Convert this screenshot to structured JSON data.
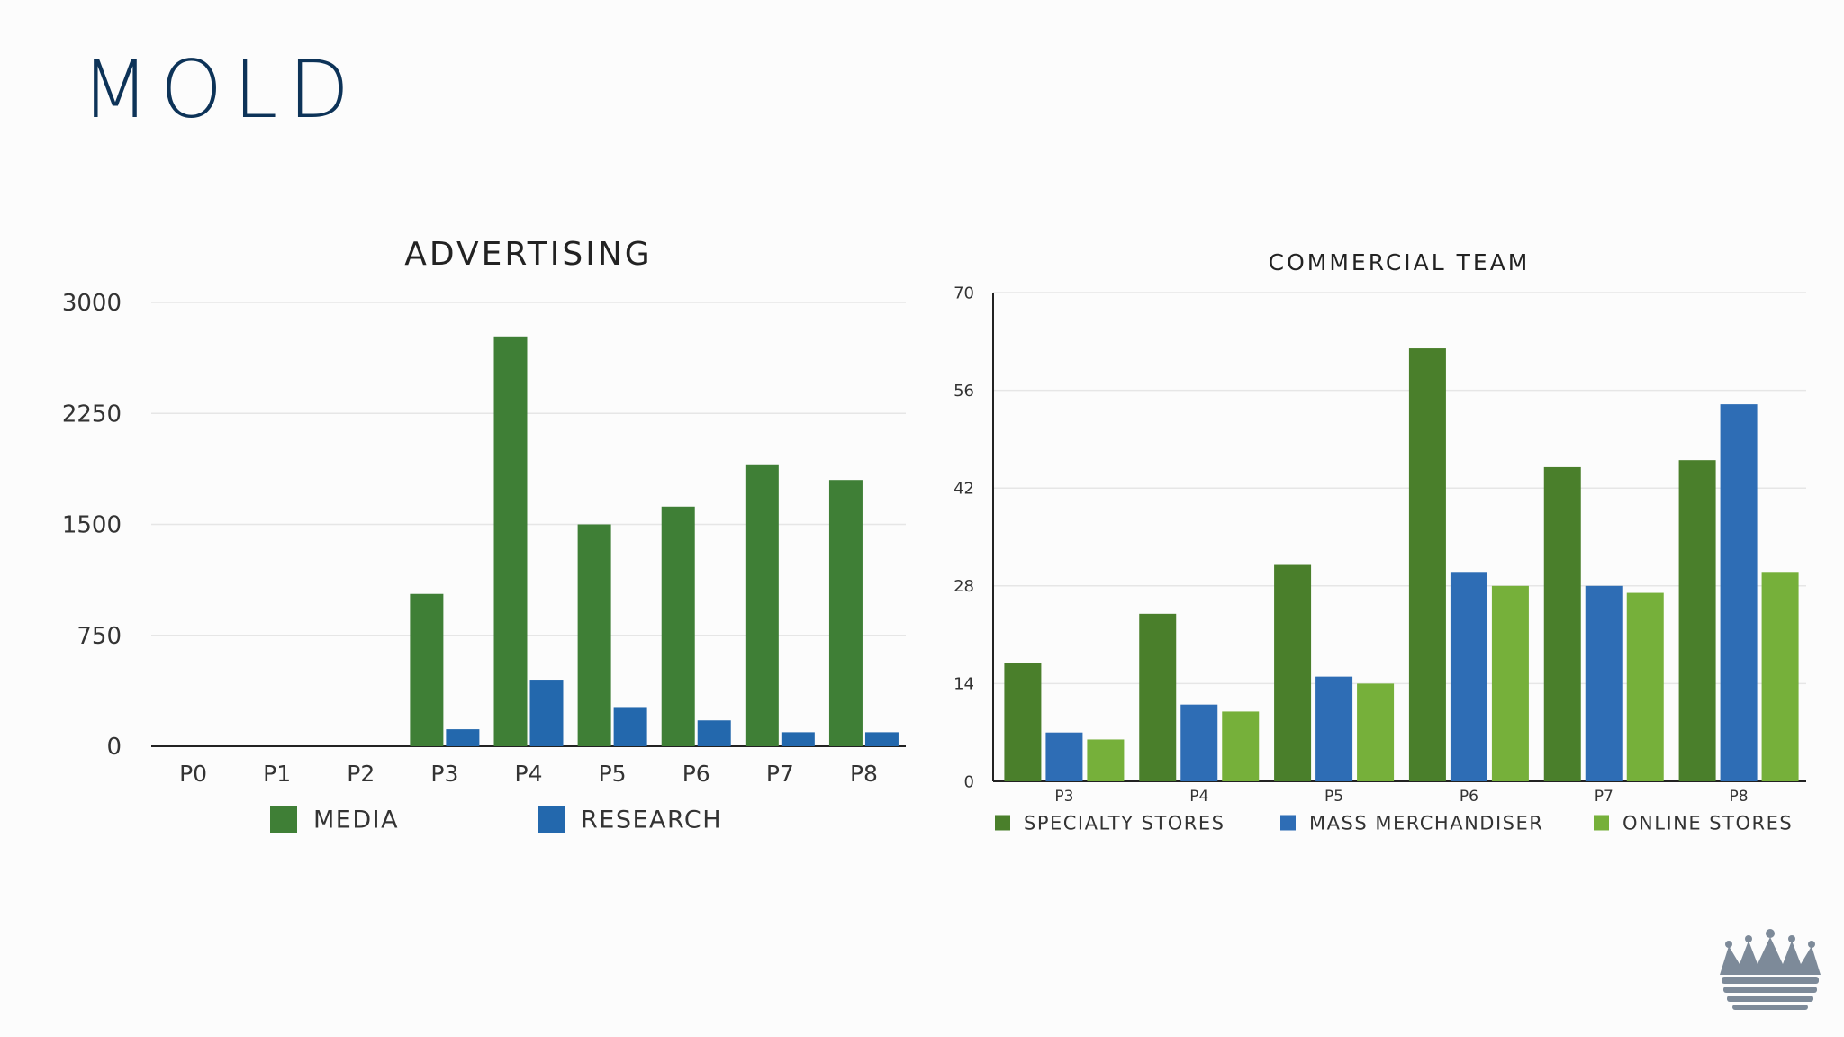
{
  "slide": {
    "title": "MOLD"
  },
  "colors": {
    "title": "#0d3358",
    "grid": "#e6e6e6",
    "axis": "#222222"
  },
  "logo": {
    "icon": "crown-icon"
  },
  "chart_data": [
    {
      "type": "bar",
      "title": "ADVERTISING",
      "xlabel": "",
      "ylabel": "",
      "categories": [
        "P0",
        "P1",
        "P2",
        "P3",
        "P4",
        "P5",
        "P6",
        "P7",
        "P8"
      ],
      "ylim": [
        0,
        3000
      ],
      "yticks": [
        "0",
        "750",
        "1500",
        "2250",
        "3000"
      ],
      "grid": true,
      "legend_position": "bottom",
      "series": [
        {
          "name": "MEDIA",
          "color": "#3f7f36",
          "values": [
            0,
            0,
            0,
            1030,
            2770,
            1500,
            1620,
            1900,
            1800
          ]
        },
        {
          "name": "RESEARCH",
          "color": "#2368ad",
          "values": [
            0,
            0,
            0,
            115,
            450,
            265,
            175,
            95,
            95
          ]
        }
      ]
    },
    {
      "type": "bar",
      "title": "COMMERCIAL TEAM",
      "xlabel": "",
      "ylabel": "",
      "categories": [
        "P3",
        "P4",
        "P5",
        "P6",
        "P7",
        "P8"
      ],
      "ylim": [
        0,
        70
      ],
      "yticks": [
        "0",
        "14",
        "28",
        "42",
        "56",
        "70"
      ],
      "grid": true,
      "legend_position": "bottom",
      "series": [
        {
          "name": "SPECIALTY STORES",
          "color": "#4a7f2b",
          "values": [
            17,
            24,
            31,
            62,
            45,
            46
          ]
        },
        {
          "name": "MASS MERCHANDISER",
          "color": "#2e6db5",
          "values": [
            7,
            11,
            15,
            30,
            28,
            54
          ]
        },
        {
          "name": "ONLINE STORES",
          "color": "#76b03a",
          "values": [
            6,
            10,
            14,
            28,
            27,
            30
          ]
        }
      ]
    }
  ]
}
